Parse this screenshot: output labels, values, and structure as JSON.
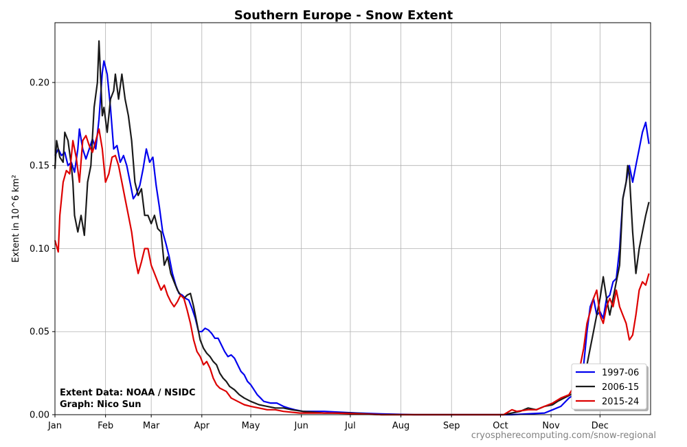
{
  "chart_data": {
    "type": "line",
    "title": "Southern Europe - Snow Extent",
    "xlabel": "",
    "ylabel": "Extent in 10^6 km²",
    "ylim": [
      0,
      0.236
    ],
    "xlim": [
      0,
      365
    ],
    "yticks": [
      0.0,
      0.05,
      0.1,
      0.15,
      0.2
    ],
    "ytick_labels": [
      "0.00",
      "0.05",
      "0.10",
      "0.15",
      "0.20"
    ],
    "xtick_days": [
      0,
      31,
      59,
      90,
      120,
      151,
      181,
      212,
      243,
      273,
      304,
      334
    ],
    "xtick_labels": [
      "Jan",
      "Feb",
      "Mar",
      "Apr",
      "May",
      "Jun",
      "Jul",
      "Aug",
      "Sep",
      "Oct",
      "Nov",
      "Dec"
    ],
    "grid": true,
    "legend_position": "bottom-right",
    "series": [
      {
        "name": "1997-06",
        "color": "#0000ee",
        "points": [
          [
            0,
            0.156
          ],
          [
            2,
            0.16
          ],
          [
            4,
            0.156
          ],
          [
            6,
            0.158
          ],
          [
            8,
            0.15
          ],
          [
            10,
            0.152
          ],
          [
            12,
            0.146
          ],
          [
            14,
            0.16
          ],
          [
            15,
            0.172
          ],
          [
            17,
            0.16
          ],
          [
            19,
            0.154
          ],
          [
            21,
            0.16
          ],
          [
            23,
            0.166
          ],
          [
            25,
            0.16
          ],
          [
            27,
            0.178
          ],
          [
            29,
            0.206
          ],
          [
            30,
            0.213
          ],
          [
            32,
            0.205
          ],
          [
            34,
            0.185
          ],
          [
            36,
            0.16
          ],
          [
            38,
            0.162
          ],
          [
            40,
            0.152
          ],
          [
            42,
            0.156
          ],
          [
            44,
            0.15
          ],
          [
            46,
            0.14
          ],
          [
            48,
            0.13
          ],
          [
            50,
            0.133
          ],
          [
            52,
            0.138
          ],
          [
            54,
            0.148
          ],
          [
            56,
            0.16
          ],
          [
            58,
            0.152
          ],
          [
            60,
            0.155
          ],
          [
            62,
            0.138
          ],
          [
            64,
            0.125
          ],
          [
            66,
            0.11
          ],
          [
            68,
            0.103
          ],
          [
            70,
            0.095
          ],
          [
            72,
            0.085
          ],
          [
            74,
            0.078
          ],
          [
            76,
            0.073
          ],
          [
            78,
            0.072
          ],
          [
            80,
            0.07
          ],
          [
            82,
            0.069
          ],
          [
            84,
            0.064
          ],
          [
            86,
            0.058
          ],
          [
            88,
            0.05
          ],
          [
            90,
            0.05
          ],
          [
            92,
            0.052
          ],
          [
            94,
            0.051
          ],
          [
            96,
            0.049
          ],
          [
            98,
            0.046
          ],
          [
            100,
            0.046
          ],
          [
            102,
            0.042
          ],
          [
            104,
            0.038
          ],
          [
            106,
            0.035
          ],
          [
            108,
            0.036
          ],
          [
            110,
            0.034
          ],
          [
            112,
            0.03
          ],
          [
            114,
            0.026
          ],
          [
            116,
            0.024
          ],
          [
            118,
            0.02
          ],
          [
            120,
            0.018
          ],
          [
            122,
            0.015
          ],
          [
            124,
            0.012
          ],
          [
            126,
            0.01
          ],
          [
            128,
            0.008
          ],
          [
            132,
            0.007
          ],
          [
            136,
            0.007
          ],
          [
            140,
            0.005
          ],
          [
            143,
            0.004
          ],
          [
            147,
            0.003
          ],
          [
            152,
            0.002
          ],
          [
            165,
            0.002
          ],
          [
            185,
            0.001
          ],
          [
            200,
            0.0005
          ],
          [
            220,
            0.0
          ],
          [
            280,
            0.0
          ],
          [
            300,
            0.001
          ],
          [
            305,
            0.003
          ],
          [
            310,
            0.005
          ],
          [
            315,
            0.01
          ],
          [
            318,
            0.012
          ],
          [
            320,
            0.015
          ],
          [
            322,
            0.02
          ],
          [
            324,
            0.03
          ],
          [
            326,
            0.05
          ],
          [
            328,
            0.065
          ],
          [
            330,
            0.07
          ],
          [
            332,
            0.06
          ],
          [
            334,
            0.062
          ],
          [
            336,
            0.058
          ],
          [
            338,
            0.07
          ],
          [
            340,
            0.072
          ],
          [
            342,
            0.08
          ],
          [
            344,
            0.082
          ],
          [
            346,
            0.1
          ],
          [
            348,
            0.13
          ],
          [
            350,
            0.14
          ],
          [
            352,
            0.15
          ],
          [
            354,
            0.14
          ],
          [
            356,
            0.15
          ],
          [
            358,
            0.16
          ],
          [
            360,
            0.17
          ],
          [
            362,
            0.176
          ],
          [
            364,
            0.163
          ]
        ]
      },
      {
        "name": "2006-15",
        "color": "#1a1a1a",
        "points": [
          [
            0,
            0.148
          ],
          [
            1,
            0.165
          ],
          [
            3,
            0.155
          ],
          [
            5,
            0.152
          ],
          [
            6,
            0.17
          ],
          [
            8,
            0.165
          ],
          [
            10,
            0.15
          ],
          [
            11,
            0.14
          ],
          [
            12,
            0.12
          ],
          [
            14,
            0.11
          ],
          [
            16,
            0.12
          ],
          [
            18,
            0.108
          ],
          [
            20,
            0.14
          ],
          [
            22,
            0.15
          ],
          [
            24,
            0.185
          ],
          [
            26,
            0.2
          ],
          [
            27,
            0.225
          ],
          [
            29,
            0.18
          ],
          [
            30,
            0.185
          ],
          [
            32,
            0.17
          ],
          [
            34,
            0.19
          ],
          [
            36,
            0.195
          ],
          [
            37,
            0.205
          ],
          [
            39,
            0.19
          ],
          [
            41,
            0.205
          ],
          [
            43,
            0.19
          ],
          [
            45,
            0.18
          ],
          [
            47,
            0.165
          ],
          [
            49,
            0.14
          ],
          [
            51,
            0.132
          ],
          [
            53,
            0.136
          ],
          [
            55,
            0.12
          ],
          [
            57,
            0.12
          ],
          [
            59,
            0.115
          ],
          [
            61,
            0.12
          ],
          [
            63,
            0.112
          ],
          [
            65,
            0.11
          ],
          [
            67,
            0.09
          ],
          [
            69,
            0.095
          ],
          [
            71,
            0.085
          ],
          [
            73,
            0.08
          ],
          [
            75,
            0.075
          ],
          [
            77,
            0.072
          ],
          [
            79,
            0.07
          ],
          [
            81,
            0.072
          ],
          [
            83,
            0.073
          ],
          [
            85,
            0.065
          ],
          [
            87,
            0.055
          ],
          [
            89,
            0.045
          ],
          [
            91,
            0.04
          ],
          [
            93,
            0.037
          ],
          [
            95,
            0.035
          ],
          [
            97,
            0.032
          ],
          [
            99,
            0.03
          ],
          [
            101,
            0.025
          ],
          [
            103,
            0.022
          ],
          [
            105,
            0.02
          ],
          [
            107,
            0.017
          ],
          [
            110,
            0.015
          ],
          [
            113,
            0.012
          ],
          [
            116,
            0.01
          ],
          [
            120,
            0.008
          ],
          [
            125,
            0.006
          ],
          [
            130,
            0.005
          ],
          [
            135,
            0.004
          ],
          [
            140,
            0.004
          ],
          [
            145,
            0.003
          ],
          [
            152,
            0.002
          ],
          [
            165,
            0.001
          ],
          [
            180,
            0.001
          ],
          [
            200,
            0.0
          ],
          [
            275,
            0.0
          ],
          [
            285,
            0.002
          ],
          [
            290,
            0.004
          ],
          [
            295,
            0.003
          ],
          [
            300,
            0.005
          ],
          [
            305,
            0.006
          ],
          [
            308,
            0.008
          ],
          [
            312,
            0.01
          ],
          [
            316,
            0.012
          ],
          [
            320,
            0.015
          ],
          [
            324,
            0.02
          ],
          [
            326,
            0.03
          ],
          [
            328,
            0.04
          ],
          [
            330,
            0.05
          ],
          [
            332,
            0.06
          ],
          [
            334,
            0.07
          ],
          [
            336,
            0.083
          ],
          [
            338,
            0.07
          ],
          [
            340,
            0.06
          ],
          [
            342,
            0.07
          ],
          [
            344,
            0.08
          ],
          [
            346,
            0.09
          ],
          [
            348,
            0.13
          ],
          [
            350,
            0.14
          ],
          [
            351,
            0.15
          ],
          [
            352,
            0.145
          ],
          [
            354,
            0.11
          ],
          [
            356,
            0.085
          ],
          [
            358,
            0.1
          ],
          [
            360,
            0.11
          ],
          [
            362,
            0.12
          ],
          [
            364,
            0.128
          ]
        ]
      },
      {
        "name": "2015-24",
        "color": "#dd0000",
        "points": [
          [
            0,
            0.105
          ],
          [
            2,
            0.098
          ],
          [
            3,
            0.12
          ],
          [
            5,
            0.14
          ],
          [
            7,
            0.147
          ],
          [
            9,
            0.145
          ],
          [
            11,
            0.165
          ],
          [
            13,
            0.155
          ],
          [
            15,
            0.14
          ],
          [
            17,
            0.165
          ],
          [
            19,
            0.168
          ],
          [
            21,
            0.162
          ],
          [
            23,
            0.158
          ],
          [
            25,
            0.165
          ],
          [
            27,
            0.172
          ],
          [
            29,
            0.16
          ],
          [
            31,
            0.14
          ],
          [
            33,
            0.145
          ],
          [
            35,
            0.155
          ],
          [
            37,
            0.156
          ],
          [
            39,
            0.15
          ],
          [
            41,
            0.14
          ],
          [
            43,
            0.13
          ],
          [
            45,
            0.12
          ],
          [
            47,
            0.11
          ],
          [
            49,
            0.095
          ],
          [
            51,
            0.085
          ],
          [
            53,
            0.092
          ],
          [
            55,
            0.1
          ],
          [
            57,
            0.1
          ],
          [
            59,
            0.09
          ],
          [
            61,
            0.085
          ],
          [
            63,
            0.08
          ],
          [
            65,
            0.075
          ],
          [
            67,
            0.078
          ],
          [
            69,
            0.072
          ],
          [
            71,
            0.068
          ],
          [
            73,
            0.065
          ],
          [
            75,
            0.068
          ],
          [
            77,
            0.072
          ],
          [
            79,
            0.07
          ],
          [
            81,
            0.063
          ],
          [
            83,
            0.055
          ],
          [
            85,
            0.045
          ],
          [
            87,
            0.038
          ],
          [
            89,
            0.035
          ],
          [
            91,
            0.03
          ],
          [
            93,
            0.032
          ],
          [
            95,
            0.028
          ],
          [
            97,
            0.022
          ],
          [
            99,
            0.018
          ],
          [
            101,
            0.016
          ],
          [
            103,
            0.015
          ],
          [
            105,
            0.014
          ],
          [
            108,
            0.01
          ],
          [
            112,
            0.008
          ],
          [
            116,
            0.006
          ],
          [
            120,
            0.005
          ],
          [
            125,
            0.004
          ],
          [
            130,
            0.003
          ],
          [
            135,
            0.003
          ],
          [
            140,
            0.002
          ],
          [
            150,
            0.001
          ],
          [
            170,
            0.001
          ],
          [
            200,
            0.0
          ],
          [
            275,
            0.0
          ],
          [
            280,
            0.003
          ],
          [
            283,
            0.002
          ],
          [
            290,
            0.003
          ],
          [
            295,
            0.003
          ],
          [
            300,
            0.005
          ],
          [
            305,
            0.007
          ],
          [
            310,
            0.01
          ],
          [
            315,
            0.012
          ],
          [
            320,
            0.02
          ],
          [
            324,
            0.04
          ],
          [
            326,
            0.055
          ],
          [
            328,
            0.062
          ],
          [
            330,
            0.07
          ],
          [
            332,
            0.075
          ],
          [
            334,
            0.06
          ],
          [
            336,
            0.055
          ],
          [
            338,
            0.065
          ],
          [
            340,
            0.07
          ],
          [
            342,
            0.065
          ],
          [
            344,
            0.075
          ],
          [
            346,
            0.065
          ],
          [
            348,
            0.06
          ],
          [
            350,
            0.055
          ],
          [
            352,
            0.045
          ],
          [
            354,
            0.048
          ],
          [
            356,
            0.06
          ],
          [
            358,
            0.075
          ],
          [
            360,
            0.08
          ],
          [
            362,
            0.078
          ],
          [
            364,
            0.085
          ]
        ]
      }
    ]
  },
  "credits": {
    "line1": "Extent Data: NOAA / NSIDC",
    "line2": "Graph: Nico Sun"
  },
  "watermark": "cryospherecomputing.com/snow-regional"
}
